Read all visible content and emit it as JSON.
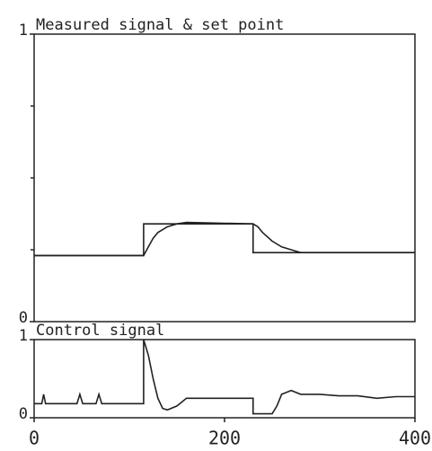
{
  "chart_data": [
    {
      "type": "line",
      "title": "Measured signal & set point",
      "xlim": [
        0,
        400
      ],
      "ylim": [
        0,
        1
      ],
      "yticks": [
        0,
        1
      ],
      "minor_yticks": [
        0.25,
        0.5,
        0.75
      ],
      "series": [
        {
          "name": "set point",
          "color": "#222222",
          "x": [
            0,
            115,
            115,
            230,
            230,
            400
          ],
          "values": [
            0.23,
            0.23,
            0.34,
            0.34,
            0.24,
            0.24
          ]
        },
        {
          "name": "measured signal",
          "color": "#222222",
          "x": [
            0,
            115,
            120,
            125,
            130,
            140,
            150,
            160,
            230,
            235,
            240,
            250,
            260,
            270,
            280,
            400
          ],
          "values": [
            0.23,
            0.23,
            0.26,
            0.29,
            0.31,
            0.33,
            0.34,
            0.345,
            0.34,
            0.33,
            0.31,
            0.28,
            0.26,
            0.25,
            0.24,
            0.24
          ]
        }
      ]
    },
    {
      "type": "line",
      "title": "Control signal",
      "xlim": [
        0,
        400
      ],
      "ylim": [
        0,
        1
      ],
      "yticks": [
        0,
        1
      ],
      "xticks": [
        0,
        200,
        400
      ],
      "series": [
        {
          "name": "control signal",
          "color": "#222222",
          "x": [
            0,
            8,
            10,
            12,
            45,
            48,
            51,
            65,
            68,
            71,
            115,
            115,
            120,
            125,
            130,
            135,
            140,
            150,
            160,
            230,
            230,
            250,
            255,
            260,
            270,
            280,
            300,
            320,
            340,
            360,
            380,
            400
          ],
          "values": [
            0.18,
            0.18,
            0.3,
            0.18,
            0.18,
            0.3,
            0.18,
            0.18,
            0.3,
            0.18,
            0.18,
            1,
            0.8,
            0.5,
            0.25,
            0.12,
            0.1,
            0.15,
            0.25,
            0.25,
            0.05,
            0.05,
            0.15,
            0.3,
            0.35,
            0.3,
            0.3,
            0.28,
            0.28,
            0.25,
            0.27,
            0.27
          ]
        }
      ]
    }
  ]
}
